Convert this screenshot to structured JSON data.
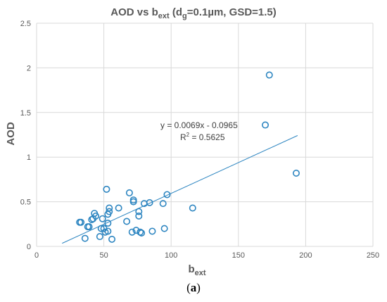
{
  "chart_data": {
    "type": "scatter",
    "title": {
      "main": "AOD vs b",
      "main_sub": "ext",
      "params_prefix": " (d",
      "params_sub": "g",
      "params_suffix": "=0.1µm, GSD=1.5)"
    },
    "xlabel": {
      "main": "b",
      "sub": "ext"
    },
    "ylabel": "AOD",
    "xlim": [
      0,
      250
    ],
    "ylim": [
      0,
      2.5
    ],
    "xticks": [
      "0",
      "50",
      "100",
      "150",
      "200",
      "250"
    ],
    "yticks": [
      "0",
      "0.5",
      "1",
      "1.5",
      "2",
      "2.5"
    ],
    "grid": true,
    "marker_color": "#2E86C1",
    "trendline_color": "#2E86C1",
    "points": [
      [
        32,
        0.27
      ],
      [
        33,
        0.27
      ],
      [
        36,
        0.09
      ],
      [
        38,
        0.22
      ],
      [
        39,
        0.22
      ],
      [
        41,
        0.3
      ],
      [
        42,
        0.31
      ],
      [
        43,
        0.37
      ],
      [
        44,
        0.34
      ],
      [
        47,
        0.11
      ],
      [
        48,
        0.2
      ],
      [
        49,
        0.31
      ],
      [
        50,
        0.2
      ],
      [
        51,
        0.16
      ],
      [
        52,
        0.64
      ],
      [
        53,
        0.26
      ],
      [
        53,
        0.36
      ],
      [
        53,
        0.17
      ],
      [
        54,
        0.39
      ],
      [
        54,
        0.43
      ],
      [
        56,
        0.08
      ],
      [
        61,
        0.43
      ],
      [
        67,
        0.28
      ],
      [
        69,
        0.6
      ],
      [
        71,
        0.16
      ],
      [
        72,
        0.52
      ],
      [
        72,
        0.5
      ],
      [
        74,
        0.18
      ],
      [
        76,
        0.34
      ],
      [
        76,
        0.39
      ],
      [
        77,
        0.16
      ],
      [
        78,
        0.15
      ],
      [
        80,
        0.48
      ],
      [
        84,
        0.49
      ],
      [
        86,
        0.17
      ],
      [
        94,
        0.48
      ],
      [
        95,
        0.2
      ],
      [
        97,
        0.58
      ],
      [
        116,
        0.43
      ],
      [
        170,
        1.36
      ],
      [
        173,
        1.92
      ],
      [
        193,
        0.82
      ]
    ],
    "trendline": {
      "x_start": 19,
      "x_end": 194,
      "slope": 0.0069,
      "intercept": -0.0965
    },
    "annotations": {
      "equation": "y = 0.0069x - 0.0965",
      "r2_prefix": "R",
      "r2_sup": "2",
      "r2_suffix": " = 0.5625"
    }
  },
  "caption": {
    "open": "(",
    "letter": "a",
    "close": ")"
  }
}
